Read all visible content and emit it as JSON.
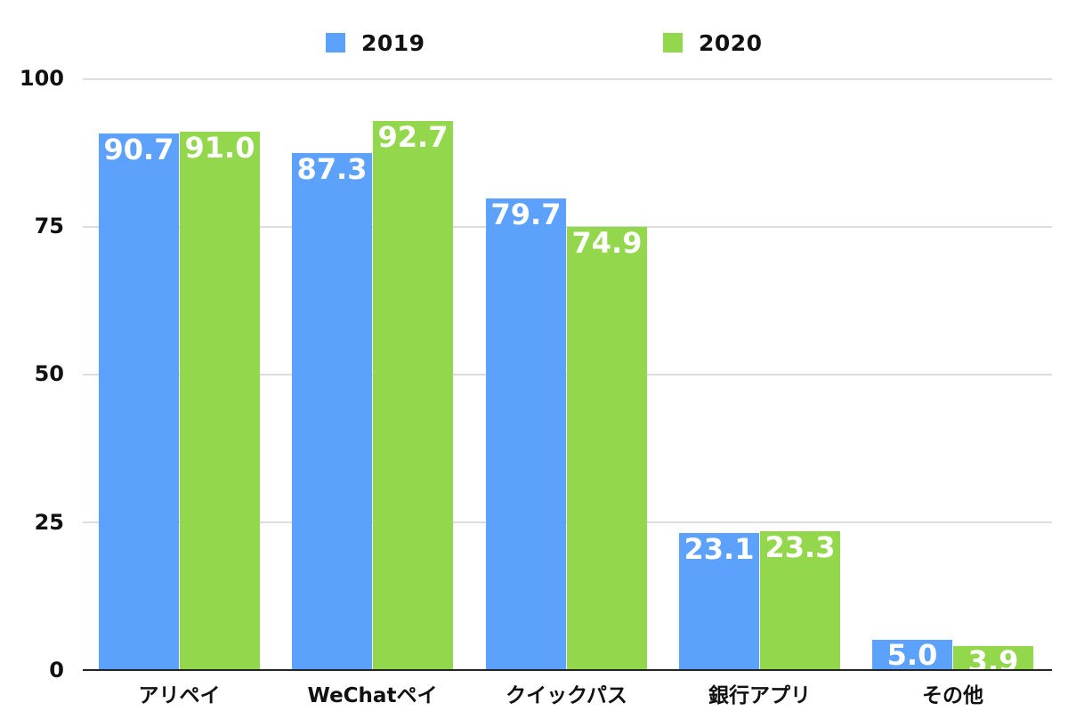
{
  "chart_data": {
    "type": "bar",
    "title": "",
    "xlabel": "",
    "ylabel": "",
    "ylim": [
      0,
      100
    ],
    "yticks": [
      0,
      25,
      50,
      75,
      100
    ],
    "grid": true,
    "legend_position": "top",
    "categories": [
      "アリペイ",
      "WeChatペイ",
      "クイックパス",
      "銀行アプリ",
      "その他"
    ],
    "series": [
      {
        "name": "2019",
        "color": "#5ca1fc",
        "values": [
          90.7,
          87.3,
          79.7,
          23.1,
          5.0
        ],
        "labels": [
          "90.7",
          "87.3",
          "79.7",
          "23.1",
          "5.0"
        ]
      },
      {
        "name": "2020",
        "color": "#92d74c",
        "values": [
          91.0,
          92.7,
          74.9,
          23.3,
          3.9
        ],
        "labels": [
          "91.0",
          "92.7",
          "74.9",
          "23.3",
          "3.9"
        ]
      }
    ]
  },
  "legend": {
    "items": [
      {
        "label": "2019",
        "color": "#5ca1fc"
      },
      {
        "label": "2020",
        "color": "#92d74c"
      }
    ]
  },
  "axis": {
    "y_tick_labels": [
      "100",
      "75",
      "50",
      "25",
      "0"
    ]
  }
}
